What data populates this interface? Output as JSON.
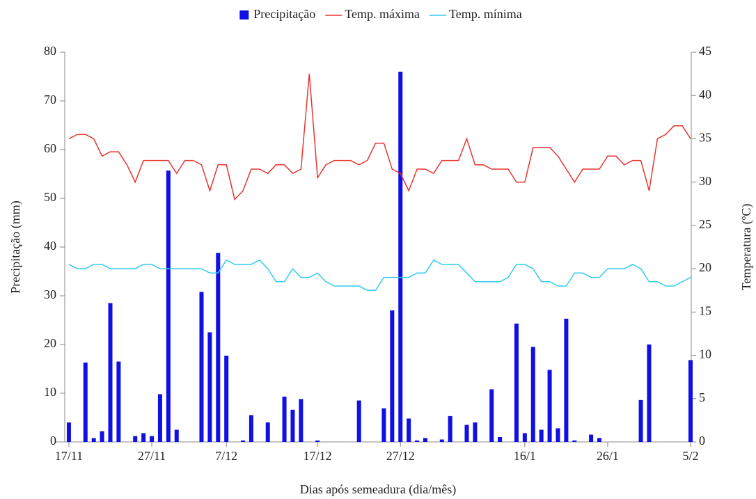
{
  "chart_data": {
    "type": "combo",
    "xlabel": "Dias após semeadura (dia/mês)",
    "ylabel": "Precipitação (mm)",
    "y2label": "Temperatura (ºC)",
    "x": [
      0,
      1,
      2,
      3,
      4,
      5,
      6,
      7,
      8,
      9,
      10,
      11,
      12,
      13,
      14,
      15,
      16,
      17,
      18,
      19,
      20,
      21,
      22,
      23,
      24,
      25,
      26,
      27,
      28,
      29,
      30,
      31,
      32,
      33,
      34,
      35,
      36,
      37,
      38,
      39,
      40,
      41,
      42,
      43,
      44,
      45,
      46,
      47,
      48,
      49,
      50,
      51,
      52,
      53,
      54,
      55,
      56,
      57,
      58,
      59,
      60,
      61,
      62,
      63,
      64,
      65,
      66,
      67,
      68,
      69,
      70,
      71,
      72,
      73,
      74,
      75
    ],
    "xlim": [
      -0.5,
      75
    ],
    "xticks": [
      {
        "value": 0,
        "label": "17/11"
      },
      {
        "value": 10,
        "label": "27/11"
      },
      {
        "value": 19,
        "label": "7/12"
      },
      {
        "value": 30,
        "label": "17/12"
      },
      {
        "value": 40,
        "label": "27/12"
      },
      {
        "value": 55,
        "label": "16/1"
      },
      {
        "value": 65,
        "label": "26/1"
      },
      {
        "value": 75,
        "label": "5/2"
      }
    ],
    "ylim": [
      0,
      80
    ],
    "yticks": [
      0,
      10,
      20,
      30,
      40,
      50,
      60,
      70,
      80
    ],
    "y2lim": [
      0,
      45
    ],
    "y2ticks": [
      0,
      5,
      10,
      15,
      20,
      25,
      30,
      35,
      40,
      45
    ],
    "legend": "top",
    "series": [
      {
        "name": "Precipitação",
        "type": "bar",
        "color": "#0f0fe6",
        "values": [
          4,
          0,
          16.3,
          0.8,
          2.2,
          28.5,
          16.5,
          0,
          1.2,
          1.8,
          1.2,
          9.8,
          55.7,
          2.5,
          0,
          0,
          30.8,
          22.5,
          38.8,
          17.7,
          0,
          0.3,
          5.5,
          0,
          4,
          0,
          9.3,
          6.6,
          8.8,
          0,
          0.3,
          0,
          0,
          0,
          0,
          8.5,
          0,
          0,
          6.9,
          27,
          76,
          4.8,
          0.3,
          0.8,
          0,
          0.5,
          5.3,
          0,
          3.5,
          4,
          0,
          10.8,
          1,
          0,
          24.3,
          1.8,
          19.5,
          2.5,
          14.8,
          2.8,
          25.3,
          0.3,
          0,
          1.5,
          0.8,
          0,
          0,
          0,
          0,
          8.6,
          20,
          0,
          0,
          0,
          0,
          16.8
        ]
      },
      {
        "name": "Temp. máxima",
        "type": "line",
        "axis": "y2",
        "color": "#e8342f",
        "values": [
          35,
          35.5,
          35.5,
          35,
          33,
          33.5,
          33.5,
          32,
          30,
          32.5,
          32.5,
          32.5,
          32.5,
          31,
          32.5,
          32.5,
          32,
          29,
          32,
          32,
          28,
          29,
          31.5,
          31.5,
          31,
          32,
          32,
          31,
          31.5,
          42.5,
          30.5,
          32,
          32.5,
          32.5,
          32.5,
          32,
          32.5,
          34.5,
          34.5,
          31.5,
          31,
          29,
          31.5,
          31.5,
          31,
          32.5,
          32.5,
          32.5,
          35,
          32,
          32,
          31.5,
          31.5,
          31.5,
          30,
          30,
          34,
          34,
          34,
          33,
          31.5,
          30,
          31.5,
          31.5,
          31.5,
          33,
          33,
          32,
          32.5,
          32.5,
          29,
          35,
          35.5,
          36.5,
          36.5,
          35
        ]
      },
      {
        "name": "Temp. mínima",
        "type": "line",
        "axis": "y2",
        "color": "#33ccee",
        "values": [
          20.5,
          20,
          20,
          20.5,
          20.5,
          20,
          20,
          20,
          20,
          20.5,
          20.5,
          20,
          20,
          20,
          20,
          20,
          20,
          19.5,
          19.5,
          21,
          20.5,
          20.5,
          20.5,
          21,
          20,
          18.5,
          18.5,
          20,
          19,
          19,
          19.5,
          18.5,
          18,
          18,
          18,
          18,
          17.5,
          17.5,
          19,
          19,
          19,
          19,
          19.5,
          19.5,
          21,
          20.5,
          20.5,
          20.5,
          19.5,
          18.5,
          18.5,
          18.5,
          18.5,
          19,
          20.5,
          20.5,
          20,
          18.5,
          18.5,
          18,
          18,
          19.5,
          19.5,
          19,
          19,
          20,
          20,
          20,
          20.5,
          20,
          18.5,
          18.5,
          18,
          18,
          18.5,
          19
        ]
      }
    ]
  }
}
